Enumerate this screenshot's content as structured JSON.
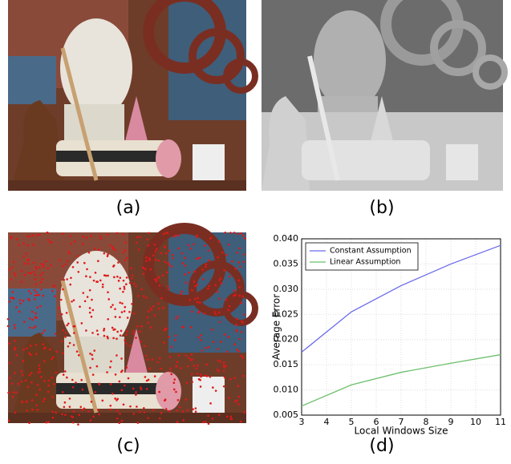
{
  "panels": [
    {
      "label": "(a)"
    },
    {
      "label": "(b)"
    },
    {
      "label": "(c)"
    },
    {
      "label": "(d)"
    }
  ],
  "chart_data": {
    "type": "line",
    "x": [
      3,
      5,
      7,
      9,
      11
    ],
    "series": [
      {
        "name": "Constant Assumption",
        "color": "#6b6bea",
        "values": [
          0.0175,
          0.0255,
          0.0307,
          0.035,
          0.0387
        ]
      },
      {
        "name": "Linear Assumption",
        "color": "#6cbf6c",
        "values": [
          0.0068,
          0.011,
          0.0135,
          0.0153,
          0.017
        ]
      }
    ],
    "xlabel": "Local Windows Size",
    "ylabel": "Average Error",
    "xlim": [
      3,
      11
    ],
    "xticks": [
      3,
      4,
      5,
      6,
      7,
      8,
      9,
      10,
      11
    ],
    "ylim": [
      0.005,
      0.04
    ],
    "yticks": [
      0.005,
      {
        "value": 0.01,
        "label": "0.010"
      },
      0.015,
      {
        "value": 0.02,
        "label": "0.020"
      },
      0.025,
      {
        "value": 0.03,
        "label": "0.030"
      },
      0.035,
      {
        "value": 0.04,
        "label": "0.040"
      }
    ],
    "grid": true,
    "legend": "upper left"
  }
}
